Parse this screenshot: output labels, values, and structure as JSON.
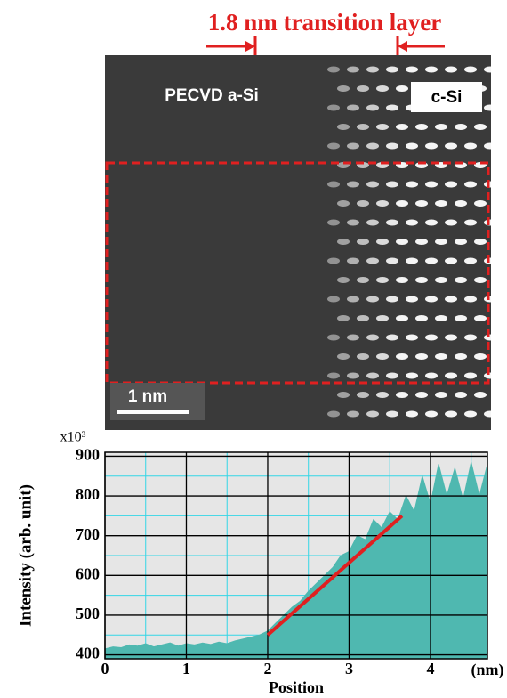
{
  "image": {
    "title": "1.8 nm transition layer",
    "left_label": "PECVD a-Si",
    "right_label": "c-Si",
    "scale_bar": "1 nm"
  },
  "chart_data": {
    "type": "area",
    "y_label": "Intensity (arb. unit)",
    "x_label": "Position",
    "x_unit": "(nm)",
    "y_multiplier": "x10³",
    "x": [
      0,
      0.1,
      0.2,
      0.3,
      0.4,
      0.5,
      0.6,
      0.7,
      0.8,
      0.9,
      1.0,
      1.1,
      1.2,
      1.3,
      1.4,
      1.5,
      1.6,
      1.7,
      1.8,
      1.9,
      2.0,
      2.1,
      2.2,
      2.3,
      2.4,
      2.5,
      2.6,
      2.7,
      2.8,
      2.9,
      3.0,
      3.1,
      3.2,
      3.3,
      3.4,
      3.5,
      3.6,
      3.7,
      3.8,
      3.9,
      4.0,
      4.1,
      4.2,
      4.3,
      4.4,
      4.5,
      4.6,
      4.7
    ],
    "values": [
      415,
      420,
      418,
      425,
      422,
      428,
      420,
      425,
      430,
      422,
      428,
      425,
      430,
      426,
      432,
      428,
      435,
      440,
      445,
      450,
      460,
      480,
      500,
      520,
      535,
      560,
      580,
      600,
      620,
      650,
      660,
      700,
      690,
      740,
      720,
      760,
      740,
      800,
      760,
      850,
      780,
      880,
      800,
      870,
      790,
      885,
      800,
      880
    ],
    "color": "#4fb8b0",
    "xlim": [
      0,
      4.7
    ],
    "ylim": [
      390,
      910
    ],
    "xticks": [
      0,
      1,
      2,
      3,
      4
    ],
    "yticks": [
      400,
      500,
      600,
      700,
      800,
      900
    ],
    "xminorticks": [
      0.5,
      1.5,
      2.5,
      3.5,
      4.5
    ],
    "yminorticks": [
      450,
      550,
      650,
      750,
      850
    ],
    "grid": true,
    "fit_line": {
      "x": [
        2,
        3.65
      ],
      "y": [
        450,
        750
      ],
      "color": "#e02020"
    }
  }
}
